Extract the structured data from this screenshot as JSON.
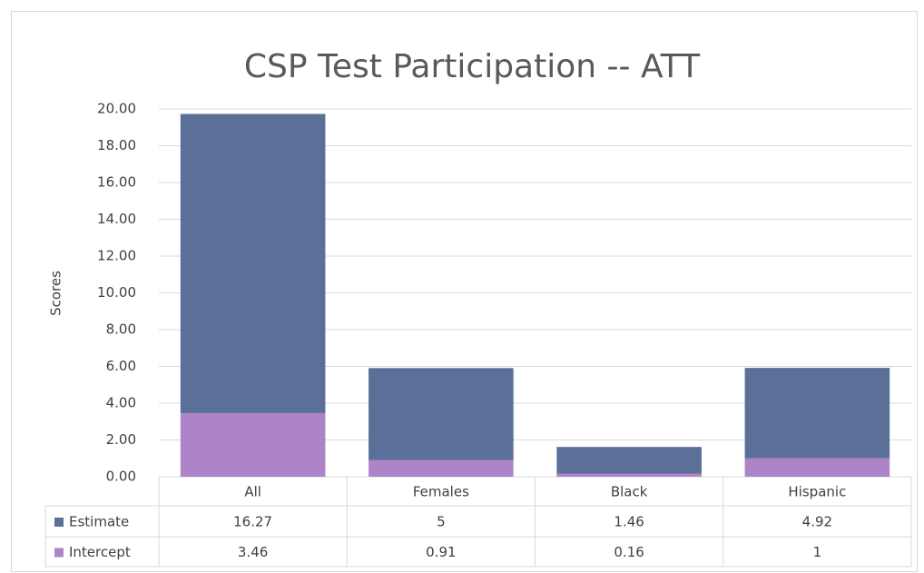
{
  "chart_data": {
    "type": "stacked_bar",
    "title": "CSP Test Participation -- ATT",
    "y_label": "Scores",
    "categories": [
      "All",
      "Females",
      "Black",
      "Hispanic"
    ],
    "series": [
      {
        "name": "Estimate",
        "color": "#5b6f98",
        "values": [
          16.27,
          5,
          1.46,
          4.92
        ]
      },
      {
        "name": "Intercept",
        "color": "#ad84c7",
        "values": [
          3.46,
          0.91,
          0.16,
          1
        ]
      }
    ],
    "ylim": [
      0,
      20
    ],
    "yticks": [
      {
        "value": 0,
        "label": "0.00"
      },
      {
        "value": 2,
        "label": "2.00"
      },
      {
        "value": 4,
        "label": "4.00"
      },
      {
        "value": 6,
        "label": "6.00"
      },
      {
        "value": 8,
        "label": "8.00"
      },
      {
        "value": 10,
        "label": "10.00"
      },
      {
        "value": 12,
        "label": "12.00"
      },
      {
        "value": 14,
        "label": "14.00"
      },
      {
        "value": 16,
        "label": "16.00"
      },
      {
        "value": 18,
        "label": "18.00"
      },
      {
        "value": 20,
        "label": "20.00"
      }
    ],
    "grid": true,
    "data_table": true
  }
}
